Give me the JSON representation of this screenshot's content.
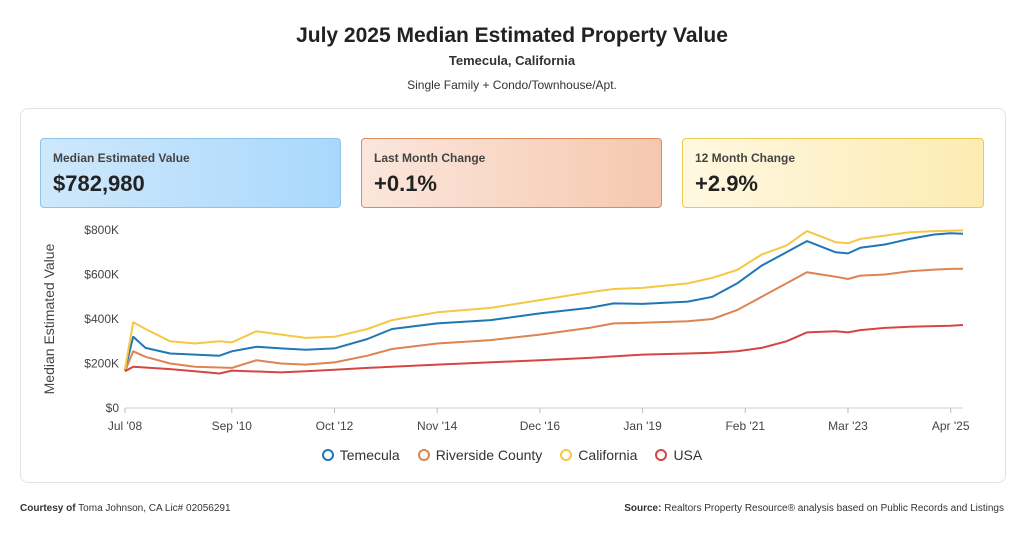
{
  "header": {
    "title": "July 2025 Median Estimated Property Value",
    "location": "Temecula, California",
    "property_types": "Single Family + Condo/Townhouse/Apt."
  },
  "cards": [
    {
      "label": "Median Estimated Value",
      "value": "$782,980"
    },
    {
      "label": "Last Month Change",
      "value": "+0.1%"
    },
    {
      "label": "12 Month Change",
      "value": "+2.9%"
    }
  ],
  "footer": {
    "courtesy_prefix": "Courtesy of",
    "courtesy_text": "Toma Johnson, CA Lic# 02056291",
    "source_prefix": "Source:",
    "source_text": "Realtors Property Resource® analysis based on Public Records and Listings"
  },
  "chart_data": {
    "type": "line",
    "ylabel": "Median Estimated Value",
    "ylim": [
      0,
      800000
    ],
    "yticks": [
      0,
      200000,
      400000,
      600000,
      800000
    ],
    "ytick_labels": [
      "$0",
      "$200K",
      "$400K",
      "$600K",
      "$800K"
    ],
    "xlim": [
      "2008-07",
      "2025-07"
    ],
    "xtick_labels": [
      "Jul '08",
      "Sep '10",
      "Oct '12",
      "Nov '14",
      "Dec '16",
      "Jan '19",
      "Feb '21",
      "Mar '23",
      "Apr '25"
    ],
    "xtick_dates": [
      "2008-07",
      "2010-09",
      "2012-10",
      "2014-11",
      "2016-12",
      "2019-01",
      "2021-02",
      "2023-03",
      "2025-04"
    ],
    "legend_position": "bottom",
    "grid": false,
    "series": [
      {
        "name": "Temecula",
        "color": "#1f77b4",
        "points": [
          [
            "2008-07",
            170000
          ],
          [
            "2008-09",
            320000
          ],
          [
            "2008-12",
            270000
          ],
          [
            "2009-06",
            245000
          ],
          [
            "2009-12",
            240000
          ],
          [
            "2010-06",
            235000
          ],
          [
            "2010-09",
            255000
          ],
          [
            "2011-03",
            275000
          ],
          [
            "2011-09",
            268000
          ],
          [
            "2012-03",
            262000
          ],
          [
            "2012-10",
            268000
          ],
          [
            "2013-06",
            310000
          ],
          [
            "2013-12",
            355000
          ],
          [
            "2014-11",
            380000
          ],
          [
            "2015-12",
            395000
          ],
          [
            "2016-12",
            425000
          ],
          [
            "2017-12",
            450000
          ],
          [
            "2018-06",
            470000
          ],
          [
            "2019-01",
            468000
          ],
          [
            "2019-12",
            478000
          ],
          [
            "2020-06",
            500000
          ],
          [
            "2020-12",
            560000
          ],
          [
            "2021-06",
            640000
          ],
          [
            "2021-12",
            700000
          ],
          [
            "2022-05",
            750000
          ],
          [
            "2022-12",
            700000
          ],
          [
            "2023-03",
            695000
          ],
          [
            "2023-06",
            720000
          ],
          [
            "2023-12",
            735000
          ],
          [
            "2024-06",
            760000
          ],
          [
            "2024-12",
            780000
          ],
          [
            "2025-04",
            785000
          ],
          [
            "2025-07",
            783000
          ]
        ]
      },
      {
        "name": "Riverside County",
        "color": "#dd8452",
        "points": [
          [
            "2008-07",
            165000
          ],
          [
            "2008-09",
            255000
          ],
          [
            "2008-12",
            230000
          ],
          [
            "2009-06",
            200000
          ],
          [
            "2009-12",
            185000
          ],
          [
            "2010-09",
            180000
          ],
          [
            "2011-03",
            215000
          ],
          [
            "2011-09",
            200000
          ],
          [
            "2012-03",
            195000
          ],
          [
            "2012-10",
            205000
          ],
          [
            "2013-06",
            235000
          ],
          [
            "2013-12",
            265000
          ],
          [
            "2014-11",
            290000
          ],
          [
            "2015-12",
            305000
          ],
          [
            "2016-12",
            330000
          ],
          [
            "2017-12",
            360000
          ],
          [
            "2018-06",
            380000
          ],
          [
            "2019-01",
            383000
          ],
          [
            "2019-12",
            390000
          ],
          [
            "2020-06",
            400000
          ],
          [
            "2020-12",
            440000
          ],
          [
            "2021-06",
            500000
          ],
          [
            "2021-12",
            560000
          ],
          [
            "2022-05",
            610000
          ],
          [
            "2022-12",
            590000
          ],
          [
            "2023-03",
            580000
          ],
          [
            "2023-06",
            595000
          ],
          [
            "2023-12",
            600000
          ],
          [
            "2024-06",
            615000
          ],
          [
            "2024-12",
            622000
          ],
          [
            "2025-04",
            625000
          ],
          [
            "2025-07",
            626000
          ]
        ]
      },
      {
        "name": "California",
        "color": "#f5c842",
        "points": [
          [
            "2008-07",
            175000
          ],
          [
            "2008-09",
            385000
          ],
          [
            "2008-12",
            355000
          ],
          [
            "2009-06",
            300000
          ],
          [
            "2009-12",
            290000
          ],
          [
            "2010-06",
            300000
          ],
          [
            "2010-09",
            295000
          ],
          [
            "2011-03",
            345000
          ],
          [
            "2011-09",
            330000
          ],
          [
            "2012-03",
            315000
          ],
          [
            "2012-10",
            320000
          ],
          [
            "2013-06",
            355000
          ],
          [
            "2013-12",
            395000
          ],
          [
            "2014-11",
            430000
          ],
          [
            "2015-12",
            450000
          ],
          [
            "2016-12",
            485000
          ],
          [
            "2017-12",
            520000
          ],
          [
            "2018-06",
            535000
          ],
          [
            "2019-01",
            540000
          ],
          [
            "2019-12",
            560000
          ],
          [
            "2020-06",
            585000
          ],
          [
            "2020-12",
            620000
          ],
          [
            "2021-06",
            690000
          ],
          [
            "2021-12",
            730000
          ],
          [
            "2022-05",
            795000
          ],
          [
            "2022-12",
            745000
          ],
          [
            "2023-03",
            740000
          ],
          [
            "2023-06",
            760000
          ],
          [
            "2023-12",
            775000
          ],
          [
            "2024-06",
            790000
          ],
          [
            "2024-12",
            795000
          ],
          [
            "2025-04",
            797000
          ],
          [
            "2025-07",
            798000
          ]
        ]
      },
      {
        "name": "USA",
        "color": "#d64545",
        "points": [
          [
            "2008-07",
            165000
          ],
          [
            "2008-09",
            185000
          ],
          [
            "2009-06",
            175000
          ],
          [
            "2009-12",
            165000
          ],
          [
            "2010-06",
            155000
          ],
          [
            "2010-09",
            168000
          ],
          [
            "2011-09",
            160000
          ],
          [
            "2012-03",
            165000
          ],
          [
            "2012-10",
            172000
          ],
          [
            "2013-06",
            180000
          ],
          [
            "2014-11",
            195000
          ],
          [
            "2016-12",
            215000
          ],
          [
            "2017-12",
            225000
          ],
          [
            "2019-01",
            240000
          ],
          [
            "2019-12",
            245000
          ],
          [
            "2020-06",
            248000
          ],
          [
            "2020-12",
            255000
          ],
          [
            "2021-06",
            270000
          ],
          [
            "2021-12",
            300000
          ],
          [
            "2022-05",
            340000
          ],
          [
            "2022-12",
            345000
          ],
          [
            "2023-03",
            340000
          ],
          [
            "2023-06",
            350000
          ],
          [
            "2023-12",
            360000
          ],
          [
            "2024-06",
            365000
          ],
          [
            "2024-12",
            368000
          ],
          [
            "2025-04",
            370000
          ],
          [
            "2025-07",
            373000
          ]
        ]
      }
    ]
  }
}
